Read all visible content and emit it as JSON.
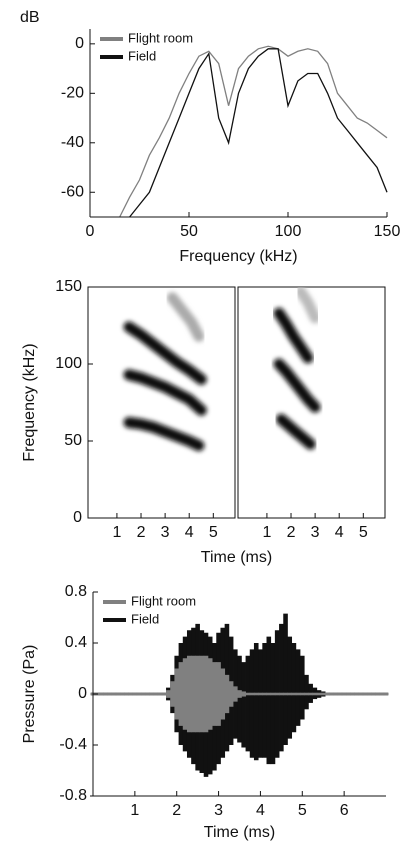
{
  "chart_data": [
    {
      "type": "line",
      "x_label": "Frequency (kHz)",
      "y_label": "dB",
      "xlim": [
        0,
        150
      ],
      "xticks": [
        0,
        50,
        100,
        150
      ],
      "ylim": [
        -70,
        6
      ],
      "yticks": [
        0,
        -20,
        -40,
        -60
      ],
      "x": [
        0,
        5,
        10,
        15,
        20,
        25,
        30,
        35,
        40,
        45,
        50,
        55,
        60,
        65,
        70,
        75,
        80,
        85,
        90,
        95,
        100,
        105,
        110,
        115,
        120,
        125,
        130,
        135,
        140,
        145,
        150
      ],
      "series": [
        {
          "name": "Flight room",
          "color": "#808080",
          "values": [
            null,
            null,
            null,
            -70,
            -62,
            -55,
            -45,
            -38,
            -30,
            -20,
            -12,
            -5,
            -3,
            -8,
            -25,
            -10,
            -5,
            -2,
            -1,
            -2,
            -5,
            -3,
            -2,
            -3,
            -8,
            -20,
            -25,
            -30,
            -32,
            -35,
            -38
          ]
        },
        {
          "name": "Field",
          "color": "#111111",
          "values": [
            null,
            null,
            null,
            null,
            -70,
            -65,
            -60,
            -50,
            -40,
            -30,
            -20,
            -10,
            -4,
            -30,
            -40,
            -20,
            -10,
            -5,
            -2,
            -2,
            -25,
            -15,
            -12,
            -12,
            -20,
            -30,
            -35,
            -40,
            -45,
            -50,
            -60
          ]
        }
      ]
    },
    {
      "type": "spectrogram",
      "x_label": "Time (ms)",
      "y_label": "Frequency (kHz)",
      "xlim": [
        -0.2,
        5.9
      ],
      "xticks": [
        1,
        2,
        3,
        4,
        5
      ],
      "ylim": [
        0,
        150
      ],
      "yticks": [
        0,
        50,
        100,
        150
      ],
      "panels": [
        {
          "ridges": [
            {
              "color": "#111111",
              "x": [
                1.5,
                2,
                2.5,
                3,
                3.5,
                4,
                4.4
              ],
              "values": [
                62,
                61,
                59,
                56,
                53,
                50,
                47
              ]
            },
            {
              "color": "#111111",
              "x": [
                1.5,
                2,
                2.5,
                3,
                3.5,
                4,
                4.5
              ],
              "values": [
                93,
                91,
                88,
                85,
                81,
                77,
                70
              ]
            },
            {
              "color": "#111111",
              "x": [
                1.5,
                2,
                2.5,
                3,
                3.5,
                4,
                4.5
              ],
              "values": [
                124,
                119,
                113,
                107,
                101,
                96,
                90
              ]
            },
            {
              "color": "#aaaaaa",
              "x": [
                3.3,
                3.7,
                4.1,
                4.4
              ],
              "values": [
                143,
                135,
                127,
                118
              ]
            },
            {
              "color": "#cccccc",
              "x": [
                1.7,
                2.1
              ],
              "values": [
                30,
                30
              ]
            }
          ]
        },
        {
          "ridges": [
            {
              "color": "#111111",
              "x": [
                1.6,
                1.9,
                2.2,
                2.5,
                2.8
              ],
              "values": [
                64,
                60,
                56,
                52,
                48
              ]
            },
            {
              "color": "#111111",
              "x": [
                1.5,
                1.8,
                2.1,
                2.4,
                2.7,
                3.0
              ],
              "values": [
                100,
                95,
                89,
                83,
                77,
                72
              ]
            },
            {
              "color": "#111111",
              "x": [
                1.5,
                1.8,
                2.1,
                2.4,
                2.7
              ],
              "values": [
                133,
                126,
                118,
                111,
                104
              ]
            },
            {
              "color": "#bbbbbb",
              "x": [
                2.4,
                2.7,
                3.0
              ],
              "values": [
                147,
                140,
                130
              ]
            },
            {
              "color": "#cccccc",
              "x": [
                2.1,
                2.4
              ],
              "values": [
                30,
                30
              ]
            }
          ]
        }
      ]
    },
    {
      "type": "waveform",
      "x_label": "Time (ms)",
      "y_label": "Pressure (Pa)",
      "xlim": [
        0,
        7
      ],
      "xticks": [
        1,
        2,
        3,
        4,
        5,
        6
      ],
      "ylim": [
        -0.8,
        0.8
      ],
      "yticks": [
        0.8,
        0.4,
        0,
        -0.4,
        -0.8
      ],
      "x": [
        0,
        0.1,
        0.2,
        0.3,
        0.4,
        0.5,
        0.6,
        0.7,
        0.8,
        0.9,
        1,
        1.1,
        1.2,
        1.3,
        1.4,
        1.5,
        1.6,
        1.7,
        1.8,
        1.9,
        2,
        2.1,
        2.2,
        2.3,
        2.4,
        2.5,
        2.6,
        2.7,
        2.8,
        2.9,
        3,
        3.1,
        3.2,
        3.3,
        3.4,
        3.5,
        3.6,
        3.7,
        3.8,
        3.9,
        4,
        4.1,
        4.2,
        4.3,
        4.4,
        4.5,
        4.6,
        4.7,
        4.8,
        4.9,
        5,
        5.1,
        5.2,
        5.3,
        5.4,
        5.5,
        5.6,
        5.7,
        5.8,
        5.9,
        6,
        6.1,
        6.2,
        6.3,
        6.4,
        6.5,
        6.6,
        6.7,
        6.8,
        6.9,
        7
      ],
      "series": [
        {
          "name": "Flight room",
          "color": "#808080",
          "upper": [
            0.01,
            0.01,
            0.01,
            0.01,
            0.01,
            0.01,
            0.01,
            0.01,
            0.01,
            0.01,
            0.01,
            0.01,
            0.01,
            0.01,
            0.01,
            0.01,
            0.01,
            0.01,
            0.03,
            0.1,
            0.2,
            0.25,
            0.28,
            0.3,
            0.3,
            0.3,
            0.3,
            0.3,
            0.28,
            0.25,
            0.25,
            0.2,
            0.15,
            0.1,
            0.06,
            0.03,
            0.02,
            0.01,
            0.01,
            0.01,
            0.01,
            0.01,
            0.01,
            0.01,
            0.01,
            0.01,
            0.01,
            0.01,
            0.01,
            0.01,
            0.01,
            0.01,
            0.01,
            0.01,
            0.01,
            0.01,
            0.01,
            0.01,
            0.01,
            0.01,
            0.01,
            0.01,
            0.01,
            0.01,
            0.01,
            0.01,
            0.01,
            0.01,
            0.01,
            0.01,
            0.01
          ],
          "lower": [
            -0.01,
            -0.01,
            -0.01,
            -0.01,
            -0.01,
            -0.01,
            -0.01,
            -0.01,
            -0.01,
            -0.01,
            -0.01,
            -0.01,
            -0.01,
            -0.01,
            -0.01,
            -0.01,
            -0.01,
            -0.01,
            -0.03,
            -0.1,
            -0.2,
            -0.25,
            -0.28,
            -0.3,
            -0.3,
            -0.3,
            -0.3,
            -0.3,
            -0.28,
            -0.25,
            -0.25,
            -0.2,
            -0.15,
            -0.1,
            -0.06,
            -0.03,
            -0.02,
            -0.01,
            -0.01,
            -0.01,
            -0.01,
            -0.01,
            -0.01,
            -0.01,
            -0.01,
            -0.01,
            -0.01,
            -0.01,
            -0.01,
            -0.01,
            -0.01,
            -0.01,
            -0.01,
            -0.01,
            -0.01,
            -0.01,
            -0.01,
            -0.01,
            -0.01,
            -0.01,
            -0.01,
            -0.01,
            -0.01,
            -0.01,
            -0.01,
            -0.01,
            -0.01,
            -0.01,
            -0.01,
            -0.01,
            -0.01
          ]
        },
        {
          "name": "Field",
          "color": "#111111",
          "upper": [
            0.01,
            0.01,
            0.01,
            0.01,
            0.01,
            0.01,
            0.01,
            0.01,
            0.01,
            0.01,
            0.01,
            0.01,
            0.01,
            0.01,
            0.01,
            0.01,
            0.01,
            0.01,
            0.05,
            0.15,
            0.3,
            0.4,
            0.45,
            0.5,
            0.52,
            0.55,
            0.5,
            0.48,
            0.45,
            0.4,
            0.48,
            0.52,
            0.55,
            0.45,
            0.35,
            0.3,
            0.25,
            0.3,
            0.35,
            0.4,
            0.35,
            0.4,
            0.45,
            0.4,
            0.5,
            0.55,
            0.63,
            0.45,
            0.4,
            0.35,
            0.3,
            0.15,
            0.08,
            0.05,
            0.03,
            0.02,
            0.01,
            0.01,
            0.01,
            0.01,
            0.01,
            0.01,
            0.01,
            0.01,
            0.01,
            0.01,
            0.01,
            0.01,
            0.01,
            0.01,
            0.01
          ],
          "lower": [
            -0.01,
            -0.01,
            -0.01,
            -0.01,
            -0.01,
            -0.01,
            -0.01,
            -0.01,
            -0.01,
            -0.01,
            -0.01,
            -0.01,
            -0.01,
            -0.01,
            -0.01,
            -0.01,
            -0.01,
            -0.01,
            -0.05,
            -0.15,
            -0.3,
            -0.4,
            -0.45,
            -0.5,
            -0.55,
            -0.6,
            -0.62,
            -0.65,
            -0.63,
            -0.6,
            -0.55,
            -0.5,
            -0.45,
            -0.4,
            -0.35,
            -0.38,
            -0.42,
            -0.45,
            -0.5,
            -0.52,
            -0.5,
            -0.5,
            -0.55,
            -0.55,
            -0.5,
            -0.45,
            -0.4,
            -0.35,
            -0.3,
            -0.25,
            -0.2,
            -0.12,
            -0.07,
            -0.04,
            -0.03,
            -0.02,
            -0.01,
            -0.01,
            -0.01,
            -0.01,
            -0.01,
            -0.01,
            -0.01,
            -0.01,
            -0.01,
            -0.01,
            -0.01,
            -0.01,
            -0.01,
            -0.01,
            -0.01
          ]
        }
      ]
    }
  ]
}
